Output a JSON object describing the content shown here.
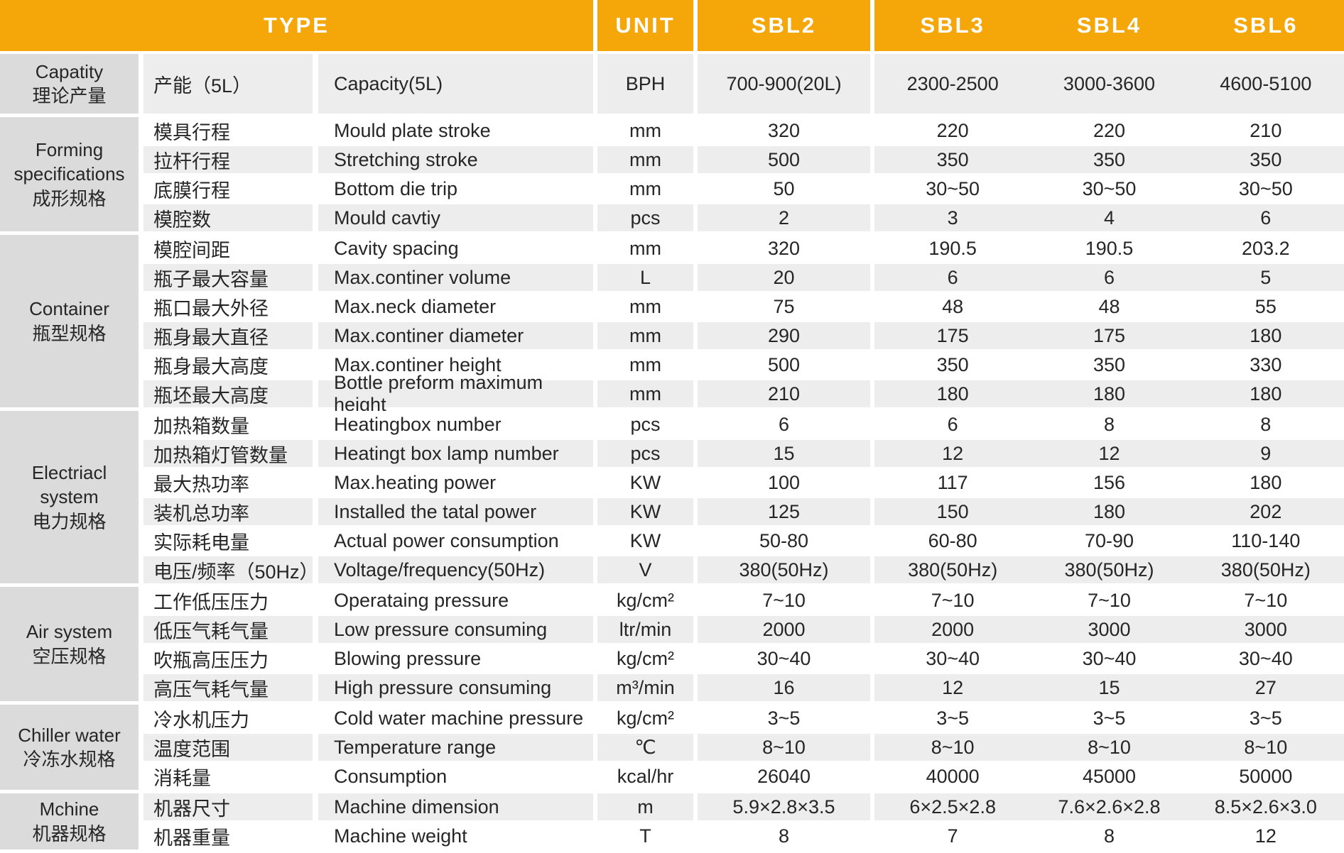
{
  "header": {
    "type": "TYPE",
    "unit": "UNIT",
    "models": [
      "SBL2",
      "SBL3",
      "SBL4",
      "SBL6"
    ]
  },
  "colors": {
    "header_bg": "#F5A70A",
    "header_text": "#FFFFFF",
    "group_bg": "#DBDBDB",
    "row_gray": "#EDEDED",
    "row_white": "#FFFFFF",
    "text": "#262626"
  },
  "sections": [
    {
      "group": {
        "en": "Capatity",
        "cn": "理论产量"
      },
      "rows": [
        {
          "cn": "产能（5L）",
          "en": "Capacity(5L)",
          "unit": "BPH",
          "values": [
            "700-900(20L)",
            "2300-2500",
            "3000-3600",
            "4600-5100"
          ]
        }
      ]
    },
    {
      "group": {
        "en": "Forming specifications",
        "cn": "成形规格"
      },
      "rows": [
        {
          "cn": "模具行程",
          "en": "Mould plate stroke",
          "unit": "mm",
          "values": [
            "320",
            "220",
            "220",
            "210"
          ]
        },
        {
          "cn": "拉杆行程",
          "en": "Stretching stroke",
          "unit": "mm",
          "values": [
            "500",
            "350",
            "350",
            "350"
          ]
        },
        {
          "cn": "底膜行程",
          "en": "Bottom die trip",
          "unit": "mm",
          "values": [
            "50",
            "30~50",
            "30~50",
            "30~50"
          ]
        },
        {
          "cn": "模腔数",
          "en": "Mould cavtiy",
          "unit": "pcs",
          "values": [
            "2",
            "3",
            "4",
            "6"
          ]
        }
      ]
    },
    {
      "group": {
        "en": "Container",
        "cn": "瓶型规格"
      },
      "rows": [
        {
          "cn": "模腔间距",
          "en": "Cavity spacing",
          "unit": "mm",
          "values": [
            "320",
            "190.5",
            "190.5",
            "203.2"
          ]
        },
        {
          "cn": "瓶子最大容量",
          "en": "Max.continer volume",
          "unit": "L",
          "values": [
            "20",
            "6",
            "6",
            "5"
          ]
        },
        {
          "cn": "瓶口最大外径",
          "en": "Max.neck diameter",
          "unit": "mm",
          "values": [
            "75",
            "48",
            "48",
            "55"
          ]
        },
        {
          "cn": "瓶身最大直径",
          "en": "Max.continer diameter",
          "unit": "mm",
          "values": [
            "290",
            "175",
            "175",
            "180"
          ]
        },
        {
          "cn": "瓶身最大高度",
          "en": "Max.continer height",
          "unit": "mm",
          "values": [
            "500",
            "350",
            "350",
            "330"
          ]
        },
        {
          "cn": "瓶坯最大高度",
          "en": "Bottle preform maximum height",
          "unit": "mm",
          "values": [
            "210",
            "180",
            "180",
            "180"
          ]
        }
      ]
    },
    {
      "group": {
        "en": "Electriacl system",
        "cn": "电力规格"
      },
      "rows": [
        {
          "cn": "加热箱数量",
          "en": "Heatingbox number",
          "unit": "pcs",
          "values": [
            "6",
            "6",
            "8",
            "8"
          ]
        },
        {
          "cn": "加热箱灯管数量",
          "en": "Heatingt box lamp number",
          "unit": "pcs",
          "values": [
            "15",
            "12",
            "12",
            "9"
          ]
        },
        {
          "cn": "最大热功率",
          "en": "Max.heating power",
          "unit": "KW",
          "values": [
            "100",
            "117",
            "156",
            "180"
          ]
        },
        {
          "cn": "装机总功率",
          "en": "Installed the tatal power",
          "unit": "KW",
          "values": [
            "125",
            "150",
            "180",
            "202"
          ]
        },
        {
          "cn": "实际耗电量",
          "en": "Actual power consumption",
          "unit": "KW",
          "values": [
            "50-80",
            "60-80",
            "70-90",
            "110-140"
          ]
        },
        {
          "cn": "电压/频率（50Hz）",
          "en": "Voltage/frequency(50Hz)",
          "unit": "V",
          "values": [
            "380(50Hz)",
            "380(50Hz)",
            "380(50Hz)",
            "380(50Hz)"
          ]
        }
      ]
    },
    {
      "group": {
        "en": "Air system",
        "cn": "空压规格"
      },
      "rows": [
        {
          "cn": "工作低压压力",
          "en": "Operataing pressure",
          "unit": "kg/cm²",
          "values": [
            "7~10",
            "7~10",
            "7~10",
            "7~10"
          ]
        },
        {
          "cn": "低压气耗气量",
          "en": "Low pressure consuming",
          "unit": "ltr/min",
          "values": [
            "2000",
            "2000",
            "3000",
            "3000"
          ]
        },
        {
          "cn": "吹瓶高压压力",
          "en": "Blowing pressure",
          "unit": "kg/cm²",
          "values": [
            "30~40",
            "30~40",
            "30~40",
            "30~40"
          ]
        },
        {
          "cn": "高压气耗气量",
          "en": "High pressure consuming",
          "unit": "m³/min",
          "values": [
            "16",
            "12",
            "15",
            "27"
          ]
        }
      ]
    },
    {
      "group": {
        "en": "Chiller water",
        "cn": "冷冻水规格"
      },
      "rows": [
        {
          "cn": "冷水机压力",
          "en": "Cold water machine pressure",
          "unit": "kg/cm²",
          "values": [
            "3~5",
            "3~5",
            "3~5",
            "3~5"
          ]
        },
        {
          "cn": "温度范围",
          "en": "Temperature range",
          "unit": "℃",
          "values": [
            "8~10",
            "8~10",
            "8~10",
            "8~10"
          ]
        },
        {
          "cn": "消耗量",
          "en": "Consumption",
          "unit": "kcal/hr",
          "values": [
            "26040",
            "40000",
            "45000",
            "50000"
          ]
        }
      ]
    },
    {
      "group": {
        "en": "Mchine",
        "cn": "机器规格"
      },
      "rows": [
        {
          "cn": "机器尺寸",
          "en": "Machine dimension",
          "unit": "m",
          "values": [
            "5.9×2.8×3.5",
            "6×2.5×2.8",
            "7.6×2.6×2.8",
            "8.5×2.6×3.0"
          ]
        },
        {
          "cn": "机器重量",
          "en": "Machine weight",
          "unit": "T",
          "values": [
            "8",
            "7",
            "8",
            "12"
          ]
        }
      ]
    }
  ]
}
